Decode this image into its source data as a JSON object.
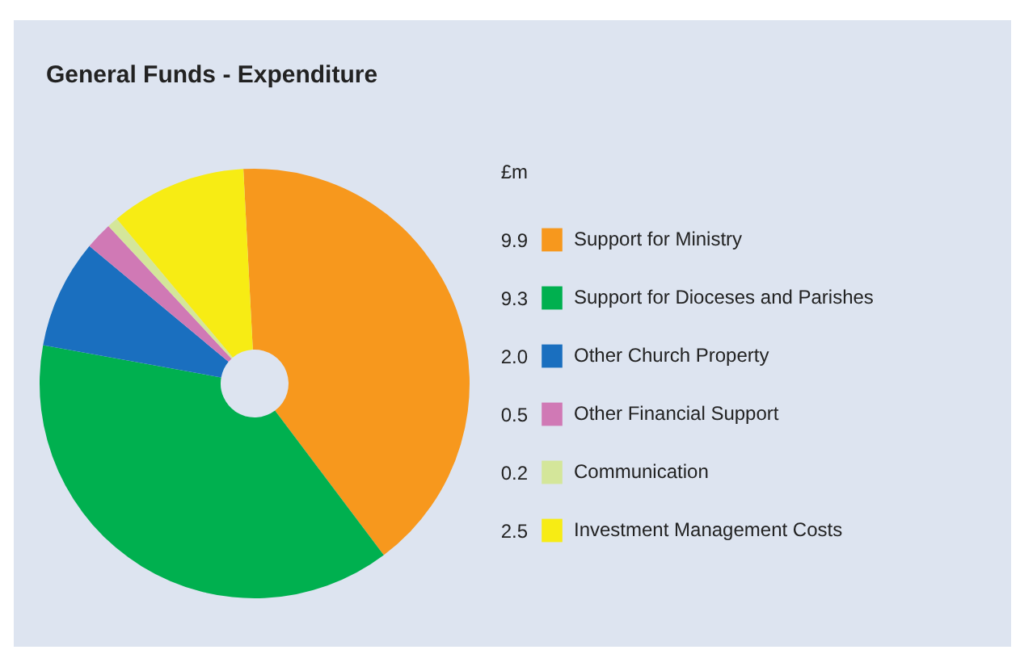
{
  "chart_data": {
    "type": "donut",
    "title": "General Funds - Expenditure",
    "legend_title": "£m",
    "categories": [
      "Support for Ministry",
      "Support for Dioceses and Parishes",
      "Other Church Property",
      "Other Financial Support",
      "Communication",
      "Investment Management Costs"
    ],
    "values": [
      9.9,
      9.3,
      2.0,
      0.5,
      0.2,
      2.5
    ],
    "colors": [
      "#f7981d",
      "#00b04f",
      "#1a6fbf",
      "#d079b5",
      "#d4e69a",
      "#f7ec14"
    ],
    "value_labels": [
      "9.9",
      "9.3",
      "2.0",
      "0.5",
      "0.2",
      "2.5"
    ],
    "legend": "right"
  }
}
